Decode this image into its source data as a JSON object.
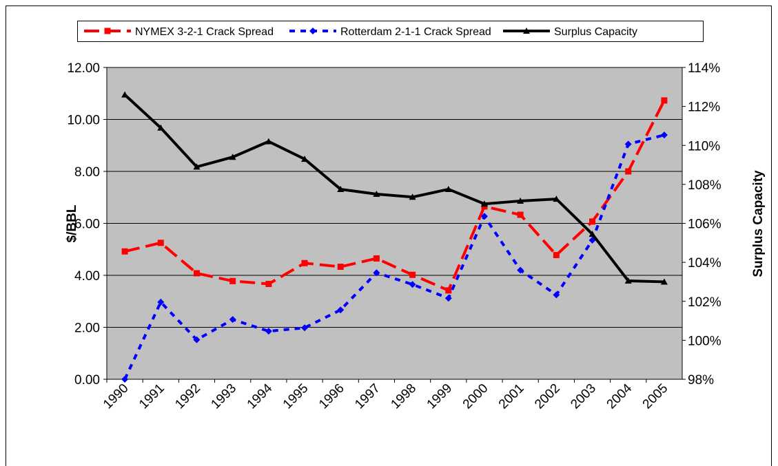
{
  "chart_data": {
    "type": "line",
    "categories": [
      "1990",
      "1991",
      "1992",
      "1993",
      "1994",
      "1995",
      "1996",
      "1997",
      "1998",
      "1999",
      "2000",
      "2001",
      "2002",
      "2003",
      "2004",
      "2005"
    ],
    "series": [
      {
        "name": "NYMEX 3-2-1 Crack Spread",
        "color": "#ff0000",
        "dash": "22 9",
        "marker": "square",
        "values": [
          4.92,
          5.25,
          4.08,
          3.78,
          3.67,
          4.47,
          4.33,
          4.65,
          4.02,
          3.42,
          6.65,
          6.33,
          4.78,
          6.07,
          8.0,
          10.73
        ]
      },
      {
        "name": "Rotterdam 2-1-1 Crack Spread",
        "color": "#0000ff",
        "dash": "8 8",
        "marker": "diamond",
        "values": [
          0.0,
          2.97,
          1.52,
          2.3,
          1.85,
          1.98,
          2.67,
          4.1,
          3.65,
          3.12,
          6.27,
          4.2,
          3.25,
          5.35,
          9.05,
          9.4
        ]
      },
      {
        "name": "Surplus Capacity",
        "color": "#000000",
        "marker": "triangle",
        "axis": "y2",
        "values": [
          112.6,
          110.9,
          108.9,
          109.4,
          110.2,
          109.3,
          107.75,
          107.5,
          107.35,
          107.75,
          107.0,
          107.15,
          107.25,
          105.45,
          103.05,
          103.0
        ]
      }
    ],
    "y_label": "$/BBL",
    "y2_label": "Surplus Capacity",
    "ylim": [
      0,
      12
    ],
    "yticks": [
      {
        "value": 0,
        "label": "0.00"
      },
      {
        "value": 2,
        "label": "2.00"
      },
      {
        "value": 4,
        "label": "4.00"
      },
      {
        "value": 6,
        "label": "6.00"
      },
      {
        "value": 8,
        "label": "8.00"
      },
      {
        "value": 10,
        "label": "10.00"
      },
      {
        "value": 12,
        "label": "12.00"
      }
    ],
    "y2lim": [
      98,
      114
    ],
    "y2ticks": [
      {
        "value": 98,
        "label": "98%"
      },
      {
        "value": 100,
        "label": "100%"
      },
      {
        "value": 102,
        "label": "102%"
      },
      {
        "value": 104,
        "label": "104%"
      },
      {
        "value": 106,
        "label": "106%"
      },
      {
        "value": 108,
        "label": "108%"
      },
      {
        "value": 110,
        "label": "110%"
      },
      {
        "value": 112,
        "label": "112%"
      },
      {
        "value": 114,
        "label": "114%"
      }
    ],
    "grid": true,
    "legend": "top",
    "plot_background": "#c0c0c0"
  }
}
